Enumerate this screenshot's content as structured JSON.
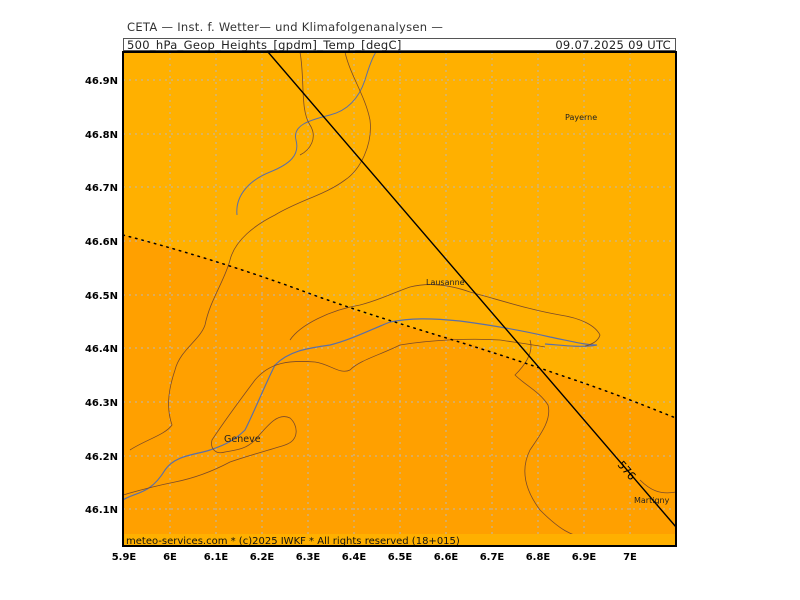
{
  "header": {
    "institute": "CETA — Inst. f. Wetter— und Klimafolgenanalysen —",
    "product": "500_hPa_Geop_Heights_[gpdm]_Temp_[degC]",
    "valid_time": "09.07.2025  09 UTC"
  },
  "map": {
    "lon_ticks": [
      "5.9E",
      "6E",
      "6.1E",
      "6.2E",
      "6.3E",
      "6.4E",
      "6.5E",
      "6.6E",
      "6.7E",
      "6.8E",
      "6.9E",
      "7E"
    ],
    "lat_ticks": [
      "46.9N",
      "46.8N",
      "46.7N",
      "46.6N",
      "46.5N",
      "46.4N",
      "46.3N",
      "46.2N",
      "46.1N"
    ],
    "cities": {
      "payerne": "Payerne",
      "lausanne": "Lausanne",
      "geneve": "Geneve",
      "martigny": "Martigny"
    },
    "contour_label": "576",
    "colors": {
      "warm_region": "#ffb000",
      "cool_region": "#ffa000",
      "contour": "#000000",
      "river": "#5a6fa8",
      "border": "#7a4a2a"
    },
    "copyright": "meteo-services.com * (c)2025 IWKF * All rights reserved (18+015)"
  }
}
